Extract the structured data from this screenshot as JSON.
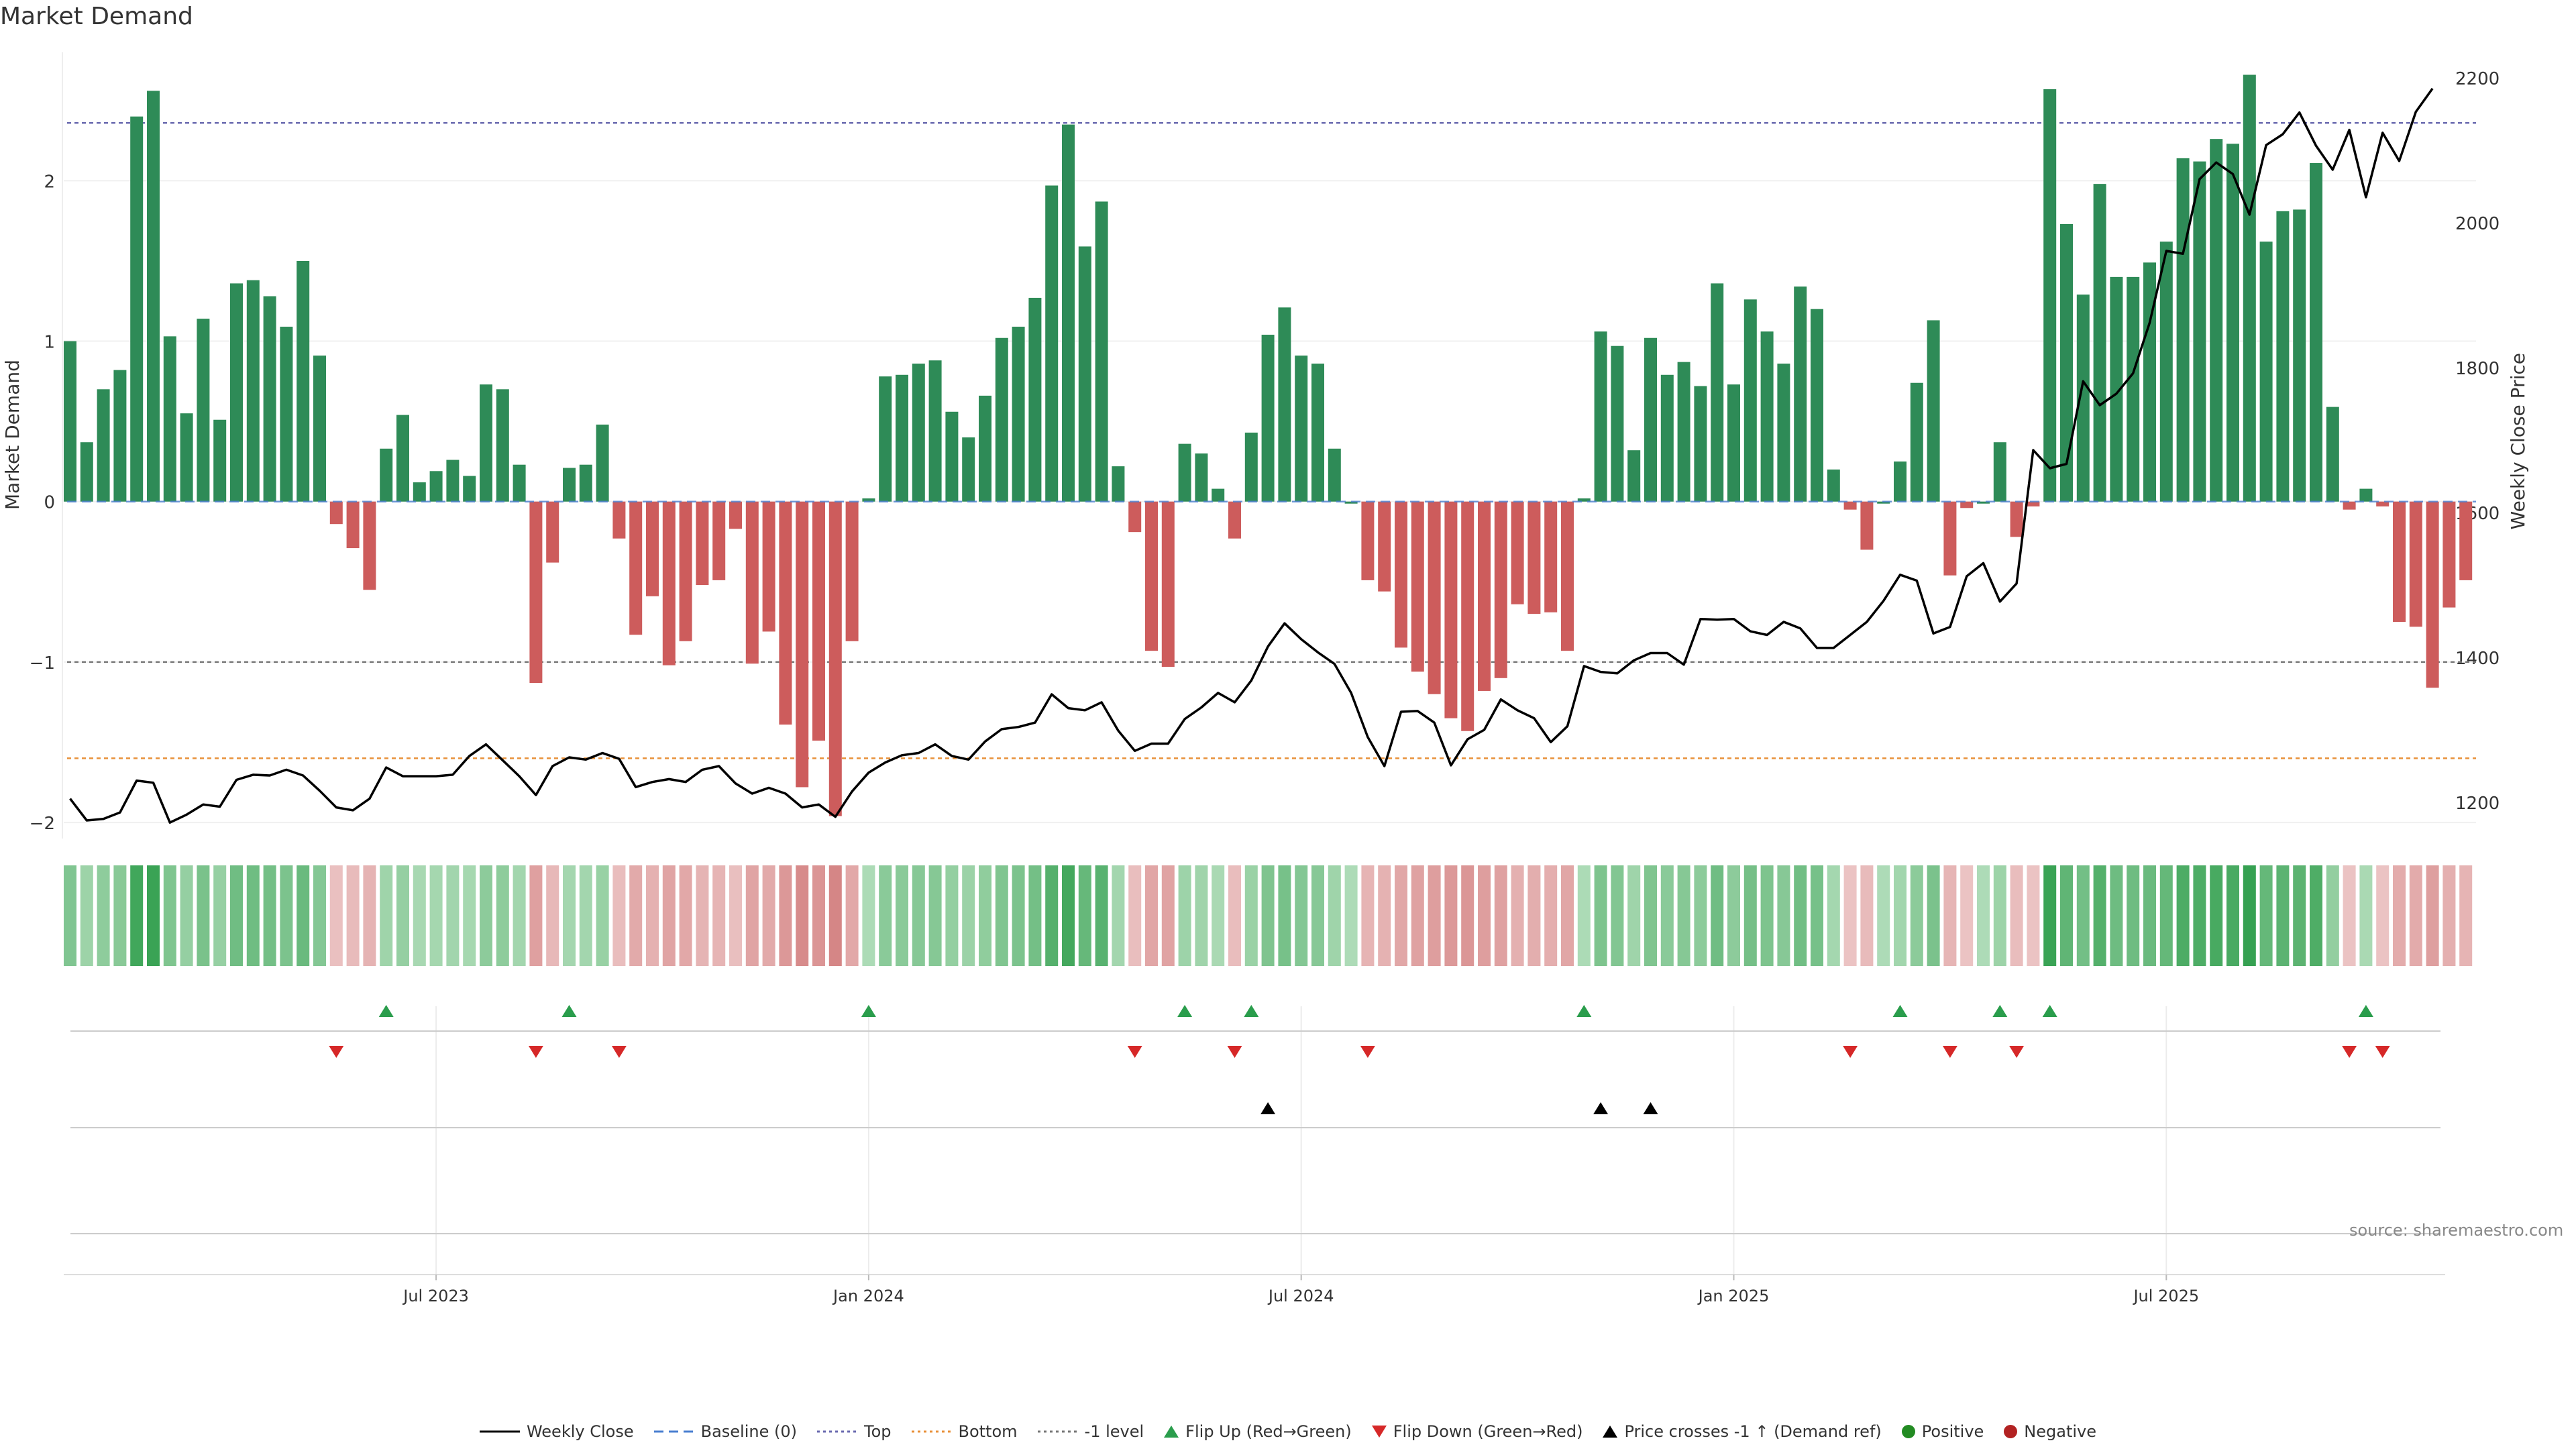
{
  "title": "Market Demand",
  "source": "source: sharemaestro.com",
  "colors": {
    "positive": "#2e8b57",
    "negative": "#cd5c5c",
    "price": "#000000",
    "top": "#6b6bb0",
    "minus1": "#777777",
    "bottom": "#e8913a",
    "baseline": "#4a7fd0",
    "flip_up": "#2a9d4c",
    "flip_down": "#d62828"
  },
  "chart_data": {
    "type": "bar",
    "title": "Market Demand",
    "ylabel": "Market Demand",
    "y2label": "Weekly Close Price",
    "ylim": [
      -2.1,
      2.8
    ],
    "y2lim": [
      1150,
      2235
    ],
    "yticks": [
      -2,
      -1,
      0,
      1,
      2
    ],
    "y2ticks": [
      1200,
      1400,
      1600,
      1800,
      2000,
      2200
    ],
    "yticklabels": [
      "−2",
      "−1",
      "0",
      "1",
      "2"
    ],
    "y2ticklabels": [
      "1200",
      "1400",
      "1600",
      "1800",
      "2000",
      "2200"
    ],
    "xtick_labels": [
      "Jul 2023",
      "Jan 2024",
      "Jul 2024",
      "Jan 2025",
      "Jul 2025"
    ],
    "xtick_bar_index": [
      22,
      48,
      74,
      100,
      126
    ],
    "levels": {
      "top": 2.36,
      "minus_one": -1.0,
      "bottom": -1.6,
      "baseline": 0
    },
    "demand": [
      1.0,
      0.37,
      0.7,
      0.82,
      2.4,
      2.56,
      1.03,
      0.55,
      1.14,
      0.51,
      1.36,
      1.38,
      1.28,
      1.09,
      1.5,
      0.91,
      -0.14,
      -0.29,
      -0.55,
      0.33,
      0.54,
      0.12,
      0.19,
      0.26,
      0.16,
      0.73,
      0.7,
      0.23,
      -1.13,
      -0.38,
      0.21,
      0.23,
      0.48,
      -0.23,
      -0.83,
      -0.59,
      -1.02,
      -0.87,
      -0.52,
      -0.49,
      -0.17,
      -1.01,
      -0.81,
      -1.39,
      -1.78,
      -1.49,
      -1.96,
      -0.87,
      0.02,
      0.78,
      0.79,
      0.86,
      0.88,
      0.56,
      0.4,
      0.66,
      1.02,
      1.09,
      1.27,
      1.97,
      2.35,
      1.59,
      1.87,
      0.22,
      -0.19,
      -0.93,
      -1.03,
      0.36,
      0.3,
      0.08,
      -0.23,
      0.43,
      1.04,
      1.21,
      0.91,
      0.86,
      0.33,
      0.0,
      -0.49,
      -0.56,
      -0.91,
      -1.06,
      -1.2,
      -1.35,
      -1.43,
      -1.18,
      -1.1,
      -0.64,
      -0.7,
      -0.69,
      -0.93,
      0.02,
      1.06,
      0.97,
      0.32,
      1.02,
      0.79,
      0.87,
      0.72,
      1.36,
      0.73,
      1.26,
      1.06,
      0.86,
      1.34,
      1.2,
      0.2,
      -0.05,
      -0.3,
      0.0,
      0.25,
      0.74,
      1.13,
      -0.46,
      -0.04,
      0.0,
      0.37,
      -0.22,
      -0.03,
      2.57,
      1.73,
      1.29,
      1.98,
      1.4,
      1.4,
      1.49,
      1.62,
      2.14,
      2.12,
      2.26,
      2.23,
      2.66,
      1.62,
      1.81,
      1.82,
      2.11,
      0.59,
      -0.05,
      0.08,
      -0.03,
      -0.75,
      -0.78,
      -1.16,
      -0.66,
      -0.49
    ],
    "weekly_close": [
      1205,
      1175,
      1177,
      1186,
      1230,
      1227,
      1172,
      1183,
      1197,
      1194,
      1231,
      1238,
      1237,
      1245,
      1237,
      1216,
      1193,
      1189,
      1205,
      1248,
      1236,
      1236,
      1236,
      1238,
      1264,
      1280,
      1258,
      1236,
      1210,
      1250,
      1262,
      1259,
      1268,
      1260,
      1221,
      1228,
      1232,
      1228,
      1245,
      1250,
      1226,
      1212,
      1220,
      1212,
      1193,
      1197,
      1180,
      1215,
      1241,
      1255,
      1265,
      1268,
      1280,
      1264,
      1259,
      1284,
      1301,
      1304,
      1310,
      1349,
      1330,
      1327,
      1338,
      1299,
      1271,
      1281,
      1281,
      1315,
      1331,
      1351,
      1338,
      1368,
      1415,
      1447,
      1425,
      1407,
      1391,
      1351,
      1290,
      1250,
      1325,
      1326,
      1310,
      1251,
      1287,
      1300,
      1342,
      1327,
      1316,
      1283,
      1305,
      1388,
      1380,
      1378,
      1396,
      1406,
      1406,
      1390,
      1453,
      1452,
      1453,
      1436,
      1431,
      1449,
      1440,
      1413,
      1413,
      1431,
      1449,
      1478,
      1514,
      1506,
      1433,
      1442,
      1512,
      1530,
      1477,
      1502,
      1686,
      1661,
      1667,
      1781,
      1748,
      1764,
      1792,
      1862,
      1961,
      1957,
      2060,
      2083,
      2067,
      2011,
      2107,
      2122,
      2152,
      2106,
      2073,
      2128,
      2035,
      2124,
      2085,
      2153,
      2185
    ],
    "flip_up_index": [
      19,
      30,
      48,
      67,
      71,
      91,
      110,
      116,
      119,
      138
    ],
    "flip_down_index": [
      16,
      28,
      33,
      64,
      70,
      78,
      107,
      113,
      117,
      137,
      139
    ],
    "price_cross_index": [
      72,
      92,
      95
    ]
  },
  "legend": [
    {
      "label": "Weekly Close",
      "kind": "line-solid"
    },
    {
      "label": "Baseline (0)",
      "kind": "line-dash-blue"
    },
    {
      "label": "Top",
      "kind": "line-dot-purple"
    },
    {
      "label": "Bottom",
      "kind": "line-dot-orange"
    },
    {
      "label": "-1 level",
      "kind": "line-dot-gray"
    },
    {
      "label": "Flip Up (Red→Green)",
      "kind": "tri-up"
    },
    {
      "label": "Flip Down (Green→Red)",
      "kind": "tri-down"
    },
    {
      "label": "Price crosses -1 ↑ (Demand ref)",
      "kind": "tri-black"
    },
    {
      "label": "Positive",
      "kind": "dot-green"
    },
    {
      "label": "Negative",
      "kind": "dot-red"
    }
  ]
}
